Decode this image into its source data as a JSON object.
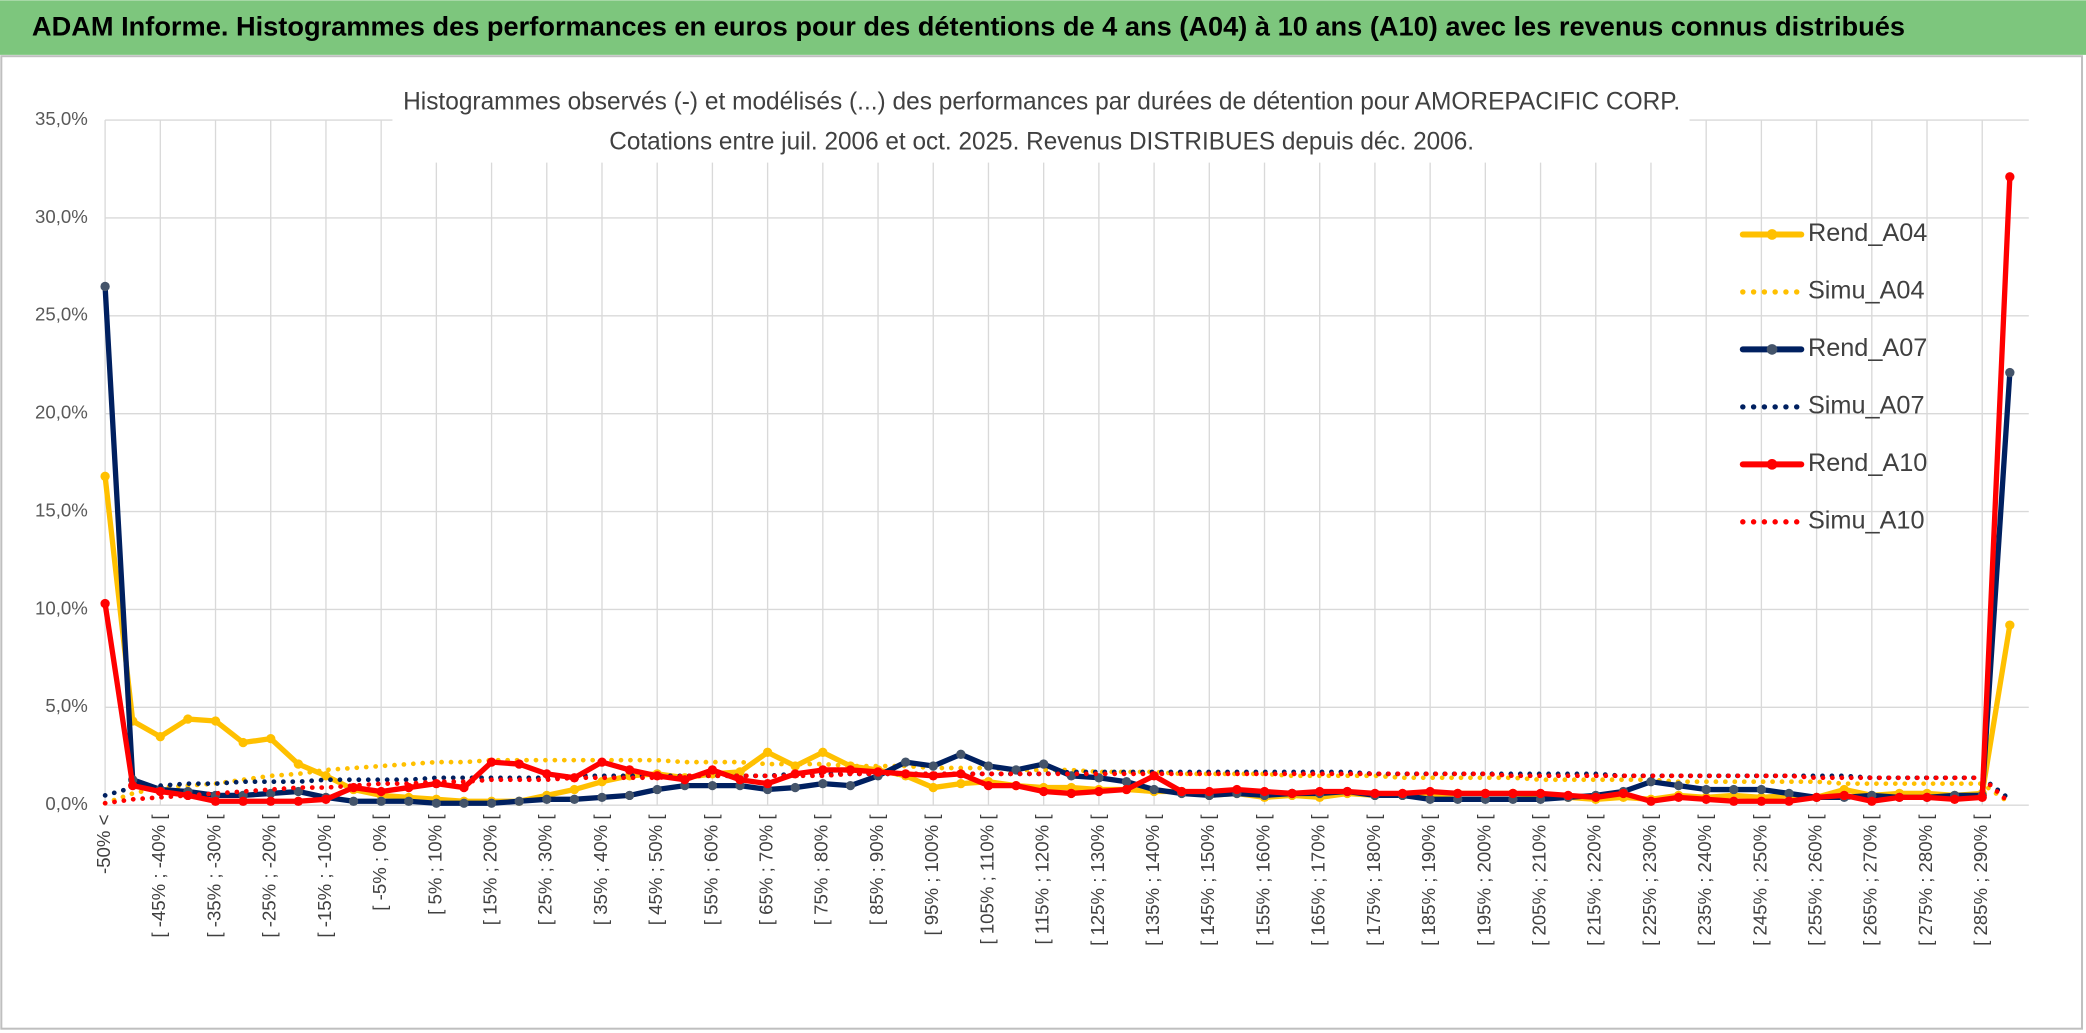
{
  "chart_data": {
    "type": "line",
    "header": "ADAM Informe. Histogrammes des performances en euros pour des détentions de 4 ans (A04) à 10 ans (A10) avec les revenus connus distribués",
    "title": "Histogrammes observés (-) et modélisés (...) des performances par durées de détention pour AMOREPACIFIC CORP.",
    "subtitle": "Cotations entre juil. 2006 et oct. 2025. Revenus DISTRIBUES depuis déc. 2006.",
    "categories": [
      "-50% <",
      null,
      "[ -45% ; -40% [",
      null,
      "[ -35% ; -30% [",
      null,
      "[ -25% ; -20% [",
      null,
      "[ -15% ; -10% [",
      null,
      "[ -5% ; 0% [",
      null,
      "[ 5% ; 10% [",
      null,
      "[ 15% ; 20% [",
      null,
      "[ 25% ; 30% [",
      null,
      "[ 35% ; 40% [",
      null,
      "[ 45% ; 50% [",
      null,
      "[ 55% ; 60% [",
      null,
      "[ 65% ; 70% [",
      null,
      "[ 75% ; 80% [",
      null,
      "[ 85% ; 90% [",
      null,
      "[ 95% ; 100% [",
      null,
      "[ 105% ; 110% [",
      null,
      "[ 115% ; 120% [",
      null,
      "[ 125% ; 130% [",
      null,
      "[ 135% ; 140% [",
      null,
      "[ 145% ; 150% [",
      null,
      "[ 155% ; 160% [",
      null,
      "[ 165% ; 170% [",
      null,
      "[ 175% ; 180% [",
      null,
      "[ 185% ; 190% [",
      null,
      "[ 195% ; 200% [",
      null,
      "[ 205% ; 210% [",
      null,
      "[ 215% ; 220% [",
      null,
      "[ 225% ; 230% [",
      null,
      "[ 235% ; 240% [",
      null,
      "[ 245% ; 250% [",
      null,
      "[ 255% ; 260% [",
      null,
      "[ 265% ; 270% [",
      null,
      "[ 275% ; 280% [",
      null,
      "[ 285% ; 290% [",
      null
    ],
    "ylim": [
      0,
      35
    ],
    "yticks": [
      {
        "value": 0,
        "label": "0,0%"
      },
      {
        "value": 5,
        "label": "5,0%"
      },
      {
        "value": 10,
        "label": "10,0%"
      },
      {
        "value": 15,
        "label": "15,0%"
      },
      {
        "value": 20,
        "label": "20,0%"
      },
      {
        "value": 25,
        "label": "25,0%"
      },
      {
        "value": 30,
        "label": "30,0%"
      },
      {
        "value": 35,
        "label": "35,0%"
      }
    ],
    "grid": true,
    "legend": "right",
    "series": [
      {
        "name": "Rend_A04",
        "color": "#ffc000",
        "style": "solid",
        "markers": true,
        "values": [
          16.8,
          4.3,
          3.5,
          4.4,
          4.3,
          3.2,
          3.4,
          2.1,
          1.5,
          0.8,
          0.5,
          0.4,
          0.3,
          0.2,
          0.2,
          0.2,
          0.5,
          0.8,
          1.2,
          1.5,
          1.6,
          1.4,
          1.6,
          1.7,
          2.7,
          2.0,
          2.7,
          2.0,
          1.8,
          1.5,
          0.9,
          1.1,
          1.2,
          1.0,
          0.9,
          0.9,
          0.8,
          0.8,
          0.7,
          0.7,
          0.5,
          0.6,
          0.4,
          0.5,
          0.4,
          0.6,
          0.5,
          0.5,
          0.5,
          0.6,
          0.6,
          0.6,
          0.5,
          0.4,
          0.3,
          0.4,
          0.3,
          0.5,
          0.4,
          0.5,
          0.4,
          0.5,
          0.4,
          0.8,
          0.5,
          0.6,
          0.6,
          0.5,
          0.6,
          9.2
        ]
      },
      {
        "name": "Simu_A04",
        "color": "#ffc000",
        "style": "dotted",
        "markers": false,
        "values": [
          0.1,
          0.6,
          0.9,
          1.0,
          1.1,
          1.3,
          1.5,
          1.6,
          1.8,
          1.9,
          2.0,
          2.1,
          2.2,
          2.2,
          2.3,
          2.3,
          2.3,
          2.3,
          2.3,
          2.3,
          2.3,
          2.2,
          2.2,
          2.2,
          2.1,
          2.1,
          2.1,
          2.0,
          2.0,
          2.0,
          1.9,
          1.9,
          1.9,
          1.8,
          1.8,
          1.8,
          1.7,
          1.7,
          1.7,
          1.6,
          1.6,
          1.6,
          1.6,
          1.5,
          1.5,
          1.5,
          1.5,
          1.4,
          1.4,
          1.4,
          1.4,
          1.4,
          1.3,
          1.3,
          1.3,
          1.3,
          1.3,
          1.2,
          1.2,
          1.2,
          1.2,
          1.2,
          1.2,
          1.1,
          1.1,
          1.1,
          1.1,
          1.1,
          1.1,
          0.1
        ]
      },
      {
        "name": "Rend_A07",
        "color": "#002060",
        "style": "solid",
        "markers": true,
        "values": [
          26.5,
          1.3,
          0.8,
          0.7,
          0.5,
          0.5,
          0.6,
          0.7,
          0.4,
          0.2,
          0.2,
          0.2,
          0.1,
          0.1,
          0.1,
          0.2,
          0.3,
          0.3,
          0.4,
          0.5,
          0.8,
          1.0,
          1.0,
          1.0,
          0.8,
          0.9,
          1.1,
          1.0,
          1.5,
          2.2,
          2.0,
          2.6,
          2.0,
          1.8,
          2.1,
          1.5,
          1.4,
          1.2,
          0.8,
          0.6,
          0.5,
          0.6,
          0.5,
          0.6,
          0.6,
          0.7,
          0.5,
          0.5,
          0.3,
          0.3,
          0.3,
          0.3,
          0.3,
          0.4,
          0.5,
          0.7,
          1.2,
          1.0,
          0.8,
          0.8,
          0.8,
          0.6,
          0.4,
          0.4,
          0.5,
          0.4,
          0.4,
          0.5,
          0.5,
          22.1
        ]
      },
      {
        "name": "Simu_A07",
        "color": "#002060",
        "style": "dotted",
        "markers": false,
        "values": [
          0.5,
          0.9,
          1.0,
          1.1,
          1.1,
          1.2,
          1.2,
          1.2,
          1.3,
          1.3,
          1.3,
          1.3,
          1.4,
          1.4,
          1.4,
          1.4,
          1.4,
          1.5,
          1.5,
          1.5,
          1.5,
          1.5,
          1.5,
          1.5,
          1.5,
          1.6,
          1.6,
          1.6,
          1.6,
          1.6,
          1.6,
          1.6,
          1.6,
          1.6,
          1.6,
          1.7,
          1.7,
          1.7,
          1.7,
          1.7,
          1.7,
          1.7,
          1.7,
          1.7,
          1.7,
          1.7,
          1.6,
          1.6,
          1.6,
          1.6,
          1.6,
          1.6,
          1.6,
          1.6,
          1.6,
          1.5,
          1.5,
          1.5,
          1.5,
          1.5,
          1.5,
          1.5,
          1.5,
          1.5,
          1.4,
          1.4,
          1.4,
          1.4,
          1.4,
          0.3
        ]
      },
      {
        "name": "Rend_A10",
        "color": "#ff0000",
        "style": "solid",
        "markers": true,
        "values": [
          10.3,
          1.0,
          0.7,
          0.5,
          0.2,
          0.2,
          0.2,
          0.2,
          0.3,
          0.9,
          0.7,
          0.9,
          1.1,
          0.9,
          2.2,
          2.1,
          1.6,
          1.4,
          2.2,
          1.8,
          1.5,
          1.3,
          1.8,
          1.3,
          1.1,
          1.6,
          1.8,
          1.8,
          1.7,
          1.6,
          1.5,
          1.6,
          1.0,
          1.0,
          0.7,
          0.6,
          0.7,
          0.8,
          1.5,
          0.7,
          0.7,
          0.8,
          0.7,
          0.6,
          0.7,
          0.7,
          0.6,
          0.6,
          0.7,
          0.6,
          0.6,
          0.6,
          0.6,
          0.5,
          0.4,
          0.6,
          0.2,
          0.4,
          0.3,
          0.2,
          0.2,
          0.2,
          0.4,
          0.5,
          0.2,
          0.4,
          0.4,
          0.3,
          0.4,
          32.1
        ]
      },
      {
        "name": "Simu_A10",
        "color": "#ff0000",
        "style": "dotted",
        "markers": false,
        "values": [
          0.1,
          0.3,
          0.4,
          0.5,
          0.6,
          0.7,
          0.8,
          0.9,
          0.9,
          1.0,
          1.1,
          1.1,
          1.2,
          1.2,
          1.3,
          1.3,
          1.3,
          1.4,
          1.4,
          1.4,
          1.4,
          1.5,
          1.5,
          1.5,
          1.5,
          1.5,
          1.5,
          1.6,
          1.6,
          1.6,
          1.6,
          1.6,
          1.6,
          1.6,
          1.6,
          1.6,
          1.6,
          1.6,
          1.6,
          1.6,
          1.6,
          1.6,
          1.6,
          1.6,
          1.6,
          1.6,
          1.6,
          1.6,
          1.6,
          1.6,
          1.6,
          1.5,
          1.5,
          1.5,
          1.5,
          1.5,
          1.5,
          1.5,
          1.5,
          1.5,
          1.5,
          1.5,
          1.4,
          1.4,
          1.4,
          1.4,
          1.4,
          1.4,
          1.4,
          0.1
        ]
      }
    ]
  }
}
